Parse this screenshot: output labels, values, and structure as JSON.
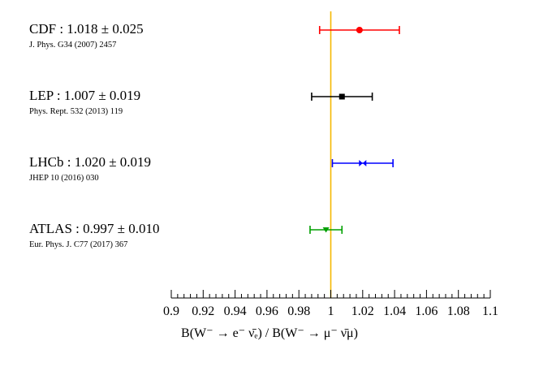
{
  "chart_data": {
    "type": "scatter",
    "subtype": "error-bar comparison",
    "xlim": [
      0.9,
      1.1
    ],
    "x_ticks": [
      "0.9",
      "0.92",
      "0.94",
      "0.96",
      "0.98",
      "1",
      "1.02",
      "1.04",
      "1.06",
      "1.08",
      "1.1"
    ],
    "xlabel": "B(W⁻ → e⁻ ν̄ₑ) / B(W⁻ → μ⁻ ν̄μ)",
    "reference_line": {
      "x": 1.0,
      "color": "#f5b800"
    },
    "grid": false,
    "measurements": [
      {
        "label": "CDF : 1.018 ± 0.025",
        "reference": "J. Phys. G34 (2007) 2457",
        "value": 1.018,
        "error": 0.025,
        "color": "#ff0000",
        "marker": "circle"
      },
      {
        "label": "LEP : 1.007 ± 0.019",
        "reference": "Phys. Rept. 532 (2013) 119",
        "value": 1.007,
        "error": 0.019,
        "color": "#000000",
        "marker": "square"
      },
      {
        "label": "LHCb : 1.020 ± 0.019",
        "reference": "JHEP 10 (2016) 030",
        "value": 1.02,
        "error": 0.019,
        "color": "#0000ff",
        "marker": "bowtie"
      },
      {
        "label": "ATLAS : 0.997 ± 0.010",
        "reference": "Eur. Phys. J. C77 (2017) 367",
        "value": 0.997,
        "error": 0.01,
        "color": "#00a000",
        "marker": "triangle-down"
      }
    ]
  }
}
